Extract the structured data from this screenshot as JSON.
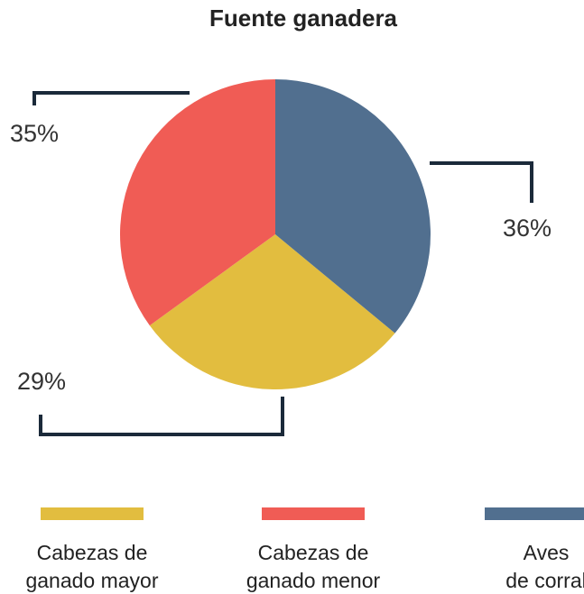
{
  "chart_data": {
    "type": "pie",
    "title": "Fuente ganadera",
    "categories": [
      "Cabezas de\nganado mayor",
      "Cabezas de\nganado menor",
      "Aves\nde corral"
    ],
    "values": [
      29,
      35,
      36
    ],
    "value_labels": [
      "29%",
      "35%",
      "36%"
    ],
    "colors": [
      "#e2bd3f",
      "#f05c55",
      "#516f8f"
    ]
  }
}
